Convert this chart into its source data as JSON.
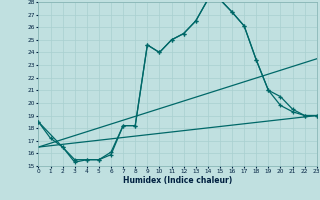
{
  "xlabel": "Humidex (Indice chaleur)",
  "bg_color": "#c0e0e0",
  "grid_color": "#a8d0d0",
  "line_color": "#006868",
  "xlim": [
    0,
    23
  ],
  "ylim": [
    15,
    28
  ],
  "yticks": [
    15,
    16,
    17,
    18,
    19,
    20,
    21,
    22,
    23,
    24,
    25,
    26,
    27,
    28
  ],
  "xticks": [
    0,
    1,
    2,
    3,
    4,
    5,
    6,
    7,
    8,
    9,
    10,
    11,
    12,
    13,
    14,
    15,
    16,
    17,
    18,
    19,
    20,
    21,
    22,
    23
  ],
  "curve1_x": [
    0,
    1,
    2,
    3,
    4,
    5,
    6,
    7,
    8,
    9,
    10,
    11,
    12,
    13,
    14,
    15,
    16,
    17,
    18,
    19,
    20,
    21,
    22,
    23
  ],
  "curve1_y": [
    18.5,
    17.2,
    16.5,
    15.3,
    15.5,
    15.5,
    15.9,
    18.2,
    18.2,
    24.6,
    24.0,
    25.0,
    25.5,
    26.5,
    28.2,
    28.2,
    27.2,
    26.1,
    23.4,
    21.0,
    19.8,
    19.3,
    19.0,
    19.0
  ],
  "curve2_x": [
    0,
    2,
    3,
    4,
    5,
    6,
    7,
    8,
    9,
    10,
    11,
    12,
    13,
    14,
    15,
    16,
    17,
    18,
    19,
    20,
    21,
    22,
    23
  ],
  "curve2_y": [
    18.5,
    16.5,
    15.5,
    15.5,
    15.5,
    16.1,
    18.2,
    18.2,
    24.6,
    24.0,
    25.0,
    25.5,
    26.5,
    28.2,
    28.2,
    27.2,
    26.1,
    23.4,
    21.0,
    20.5,
    19.5,
    19.0,
    19.0
  ],
  "line1_x": [
    0,
    23
  ],
  "line1_y": [
    16.5,
    23.5
  ],
  "line2_x": [
    0,
    23
  ],
  "line2_y": [
    16.5,
    19.0
  ]
}
